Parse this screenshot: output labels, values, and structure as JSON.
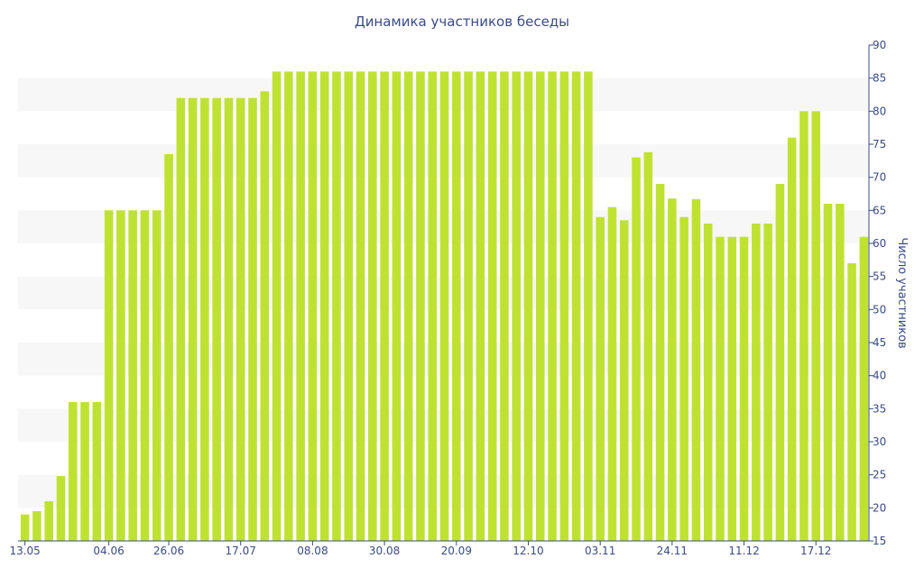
{
  "chart_data": {
    "type": "bar",
    "title": "Динамика участников беседы",
    "xlabel": "",
    "ylabel": "Число участников",
    "ylim": [
      15,
      90
    ],
    "yticks": [
      15,
      20,
      25,
      30,
      35,
      40,
      45,
      50,
      55,
      60,
      65,
      70,
      75,
      80,
      85,
      90
    ],
    "x_tick_labels": [
      "13.05",
      "04.06",
      "26.06",
      "17.07",
      "08.08",
      "30.08",
      "20.09",
      "12.10",
      "03.11",
      "24.11",
      "11.12",
      "17.12"
    ],
    "x_tick_label_indices": [
      0,
      7,
      12,
      18,
      24,
      30,
      36,
      42,
      48,
      54,
      60,
      66
    ],
    "values": [
      19,
      19.5,
      21,
      24.8,
      36,
      36,
      36,
      65,
      65,
      65,
      65,
      65,
      73.5,
      82,
      82,
      82,
      82,
      82,
      82,
      82,
      83,
      86,
      86,
      86,
      86,
      86,
      86,
      86,
      86,
      86,
      86,
      86,
      86,
      86,
      86,
      86,
      86,
      86,
      86,
      86,
      86,
      86,
      86,
      86,
      86,
      86,
      86,
      86,
      64,
      65.5,
      63.5,
      73,
      73.8,
      69,
      66.8,
      64,
      66.7,
      63,
      61,
      61,
      61,
      63,
      63,
      69,
      76,
      80,
      80,
      66,
      66,
      57,
      61
    ],
    "bar_color": "#bfe232",
    "band_color": "#f7f7f7",
    "text_color": "#3a4b86",
    "axis_color": "#3a4b86",
    "grid": "alternating-bands",
    "y_axis_side": "right"
  }
}
